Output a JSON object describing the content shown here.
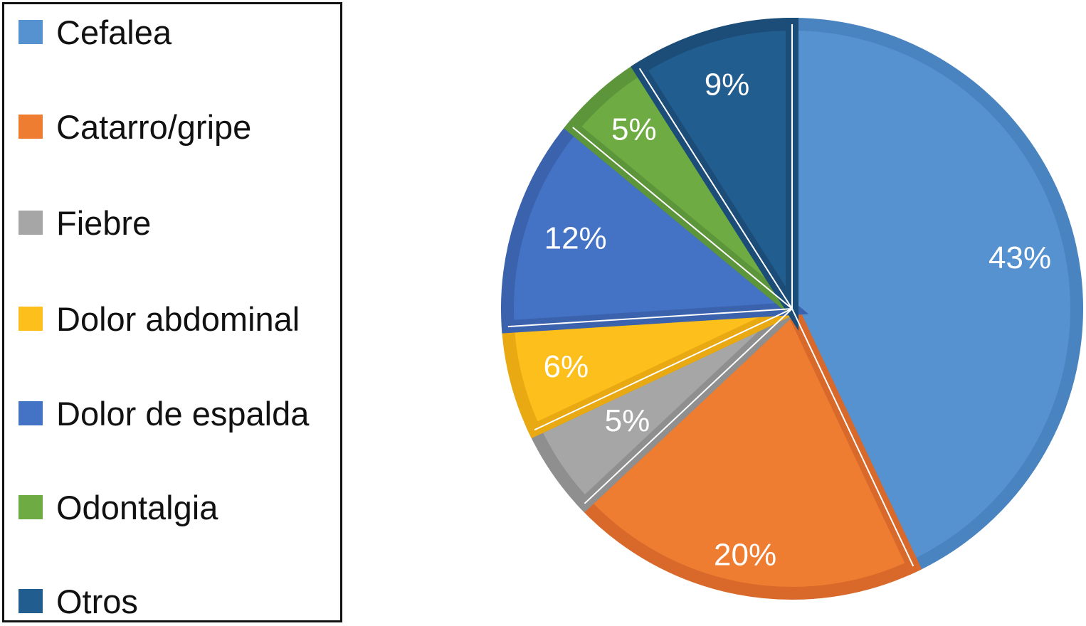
{
  "chart_data": {
    "type": "pie",
    "title": "",
    "legend_placement": "left",
    "slices": [
      {
        "label": "Cefalea",
        "value": 43,
        "display": "43%",
        "color": "#5592cf",
        "border": "#4a84c0"
      },
      {
        "label": "Catarro/gripe",
        "value": 20,
        "display": "20%",
        "color": "#ee7d31",
        "border": "#d9692a"
      },
      {
        "label": "Fiebre",
        "value": 5,
        "display": "5%",
        "color": "#a6a6a6",
        "border": "#8f8f8f"
      },
      {
        "label": "Dolor abdominal",
        "value": 6,
        "display": "6%",
        "color": "#fdbf1b",
        "border": "#e8a912"
      },
      {
        "label": "Dolor de espalda",
        "value": 12,
        "display": "12%",
        "color": "#4472c4",
        "border": "#3a62ad"
      },
      {
        "label": "Odontalgia",
        "value": 5,
        "display": "5%",
        "color": "#6fab43",
        "border": "#5c953a"
      },
      {
        "label": "Otros",
        "value": 9,
        "display": "9%",
        "color": "#225d8f",
        "border": "#1b4d78"
      }
    ]
  }
}
